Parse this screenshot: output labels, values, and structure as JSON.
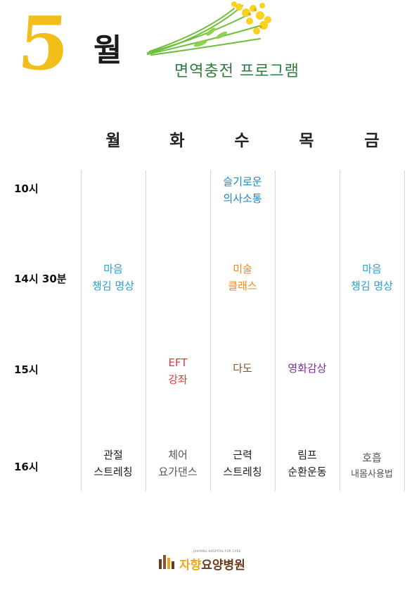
{
  "header": {
    "month_number": "5",
    "month_word": "월",
    "program_title": "면역충전 프로그램"
  },
  "days": [
    "월",
    "화",
    "수",
    "목",
    "금"
  ],
  "times": [
    "10시",
    "14시 30분",
    "15시",
    "16시"
  ],
  "schedule": {
    "r10_wed": [
      "슬기로운",
      "의사소통"
    ],
    "r1430_mon": [
      "마음",
      "챙김 명상"
    ],
    "r1430_wed": [
      "미술",
      "클래스"
    ],
    "r1430_fri": [
      "마음",
      "챙김 명상"
    ],
    "r15_tue": [
      "EFT",
      "강좌"
    ],
    "r15_wed": [
      "다도"
    ],
    "r15_thu": [
      "영화감상"
    ],
    "r16_mon": [
      "관절",
      "스트레칭"
    ],
    "r16_tue": [
      "체어",
      "요가댄스"
    ],
    "r16_wed": [
      "근력",
      "스트레칭"
    ],
    "r16_thu": [
      "림프",
      "순환운동"
    ],
    "r16_fri": [
      "호흡",
      "내몸사용법"
    ]
  },
  "footer": {
    "logo_subtitle": "JAHYANG HOSPITAL FOR CARE",
    "logo_name_part1": "자향",
    "logo_name_part2": "요양병원"
  },
  "colors": {
    "month_yellow": "#f2be1a",
    "title_green": "#2d7a3f",
    "communication_blue": "#1d86c4",
    "meditation_sky": "#2a9fd6",
    "art_orange": "#ee8a22",
    "eft_red": "#e03a3a",
    "tea_brown": "#8a5530",
    "movie_purple": "#7a2e96",
    "logo_brown": "#6b3a1f"
  }
}
